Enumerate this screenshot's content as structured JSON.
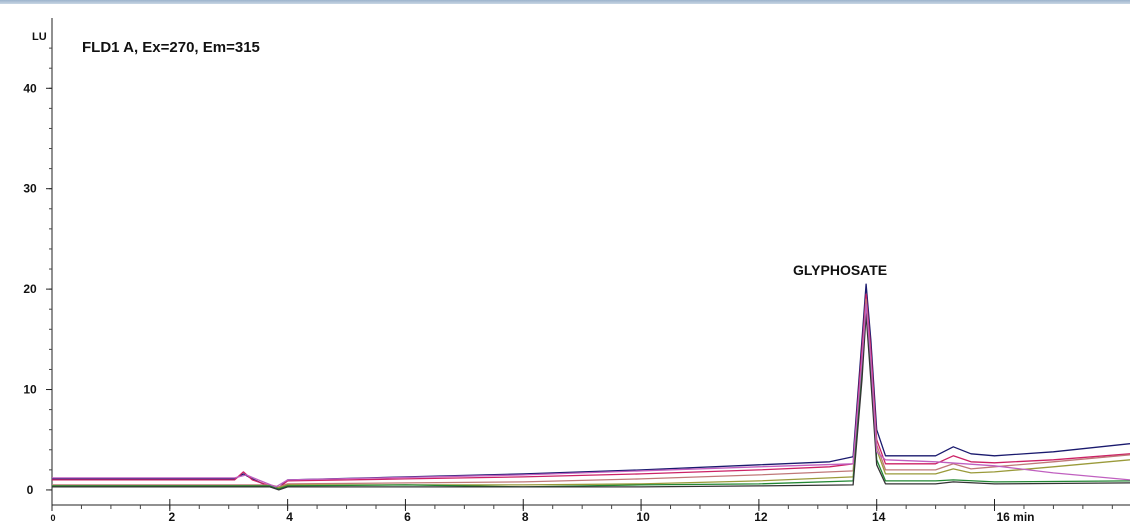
{
  "chart_data": {
    "type": "line",
    "title": "FLD1 A, Ex=270, Em=315",
    "ylabel": "LU",
    "xlabel": "min",
    "xlim": [
      0,
      18.3
    ],
    "ylim": [
      -1.5,
      47
    ],
    "x_ticks": [
      {
        "v": 0,
        "label": "0"
      },
      {
        "v": 2,
        "label": "2"
      },
      {
        "v": 4,
        "label": "4"
      },
      {
        "v": 6,
        "label": "6"
      },
      {
        "v": 8,
        "label": "8"
      },
      {
        "v": 10,
        "label": "10"
      },
      {
        "v": 12,
        "label": "12"
      },
      {
        "v": 14,
        "label": "14"
      },
      {
        "v": 16,
        "label": "16 min"
      }
    ],
    "y_ticks": [
      {
        "v": 0,
        "label": "0"
      },
      {
        "v": 10,
        "label": "10"
      },
      {
        "v": 20,
        "label": "20"
      },
      {
        "v": 30,
        "label": "30"
      },
      {
        "v": 40,
        "label": "40"
      }
    ],
    "annotations": [
      {
        "text": "GLYPHOSATE",
        "x": 14.1,
        "y": 22
      }
    ],
    "series": [
      {
        "color": "#1a1a6e",
        "points": [
          [
            0,
            1.1
          ],
          [
            3.1,
            1.1
          ],
          [
            3.25,
            1.6
          ],
          [
            3.4,
            1.1
          ],
          [
            3.7,
            0.3
          ],
          [
            3.85,
            0.2
          ],
          [
            4.0,
            1.0
          ],
          [
            6,
            1.3
          ],
          [
            8,
            1.6
          ],
          [
            10,
            2.0
          ],
          [
            12,
            2.5
          ],
          [
            13.2,
            2.8
          ],
          [
            13.6,
            3.3
          ],
          [
            13.75,
            15
          ],
          [
            13.82,
            20.5
          ],
          [
            13.9,
            15
          ],
          [
            14.0,
            6
          ],
          [
            14.15,
            3.4
          ],
          [
            15.0,
            3.4
          ],
          [
            15.3,
            4.3
          ],
          [
            15.6,
            3.6
          ],
          [
            16,
            3.4
          ],
          [
            17,
            3.8
          ],
          [
            18.3,
            4.6
          ]
        ]
      },
      {
        "color": "#cc2266",
        "points": [
          [
            0,
            1.0
          ],
          [
            3.1,
            1.0
          ],
          [
            3.25,
            1.8
          ],
          [
            3.4,
            1.0
          ],
          [
            3.7,
            0.4
          ],
          [
            3.85,
            0.2
          ],
          [
            4.0,
            0.9
          ],
          [
            6,
            1.1
          ],
          [
            8,
            1.3
          ],
          [
            10,
            1.6
          ],
          [
            12,
            2.0
          ],
          [
            13.2,
            2.3
          ],
          [
            13.6,
            2.6
          ],
          [
            13.75,
            14
          ],
          [
            13.82,
            19.5
          ],
          [
            13.9,
            14
          ],
          [
            14.0,
            5
          ],
          [
            14.15,
            2.6
          ],
          [
            15.0,
            2.6
          ],
          [
            15.3,
            3.4
          ],
          [
            15.6,
            2.8
          ],
          [
            16,
            2.7
          ],
          [
            17,
            3.0
          ],
          [
            18.3,
            3.6
          ]
        ]
      },
      {
        "color": "#c07878",
        "points": [
          [
            0,
            0.5
          ],
          [
            3.7,
            0.5
          ],
          [
            3.85,
            0.3
          ],
          [
            4.0,
            0.6
          ],
          [
            8,
            0.8
          ],
          [
            10,
            1.1
          ],
          [
            12,
            1.5
          ],
          [
            13.6,
            1.9
          ],
          [
            13.75,
            13
          ],
          [
            13.82,
            19
          ],
          [
            13.9,
            13
          ],
          [
            14.0,
            4.5
          ],
          [
            14.15,
            2.0
          ],
          [
            15.0,
            2.0
          ],
          [
            15.3,
            2.6
          ],
          [
            15.6,
            2.1
          ],
          [
            16,
            2.3
          ],
          [
            17,
            2.8
          ],
          [
            18.3,
            3.5
          ]
        ]
      },
      {
        "color": "#9a9a3a",
        "points": [
          [
            0,
            0.4
          ],
          [
            3.7,
            0.4
          ],
          [
            3.85,
            0.2
          ],
          [
            4.0,
            0.5
          ],
          [
            8,
            0.5
          ],
          [
            10,
            0.6
          ],
          [
            12,
            0.9
          ],
          [
            13.6,
            1.3
          ],
          [
            13.75,
            12
          ],
          [
            13.82,
            18.5
          ],
          [
            13.9,
            12
          ],
          [
            14.0,
            4
          ],
          [
            14.15,
            1.6
          ],
          [
            15.0,
            1.6
          ],
          [
            15.3,
            2.1
          ],
          [
            15.6,
            1.7
          ],
          [
            16,
            1.8
          ],
          [
            17,
            2.3
          ],
          [
            18.3,
            3.0
          ]
        ]
      },
      {
        "color": "#228833",
        "points": [
          [
            0,
            0.4
          ],
          [
            3.7,
            0.4
          ],
          [
            3.85,
            0.1
          ],
          [
            4.0,
            0.4
          ],
          [
            6,
            0.5
          ],
          [
            8,
            0.3
          ],
          [
            10,
            0.5
          ],
          [
            12,
            0.6
          ],
          [
            13.6,
            0.9
          ],
          [
            13.75,
            12
          ],
          [
            13.82,
            18
          ],
          [
            13.9,
            12
          ],
          [
            14.0,
            3
          ],
          [
            14.15,
            0.9
          ],
          [
            15.0,
            0.9
          ],
          [
            15.3,
            1.0
          ],
          [
            16,
            0.8
          ],
          [
            18.3,
            0.9
          ]
        ]
      },
      {
        "color": "#333333",
        "points": [
          [
            0,
            0.3
          ],
          [
            3.7,
            0.3
          ],
          [
            3.85,
            0.0
          ],
          [
            4.0,
            0.3
          ],
          [
            8,
            0.3
          ],
          [
            10,
            0.3
          ],
          [
            12,
            0.4
          ],
          [
            13.6,
            0.5
          ],
          [
            13.75,
            11
          ],
          [
            13.82,
            17.5
          ],
          [
            13.9,
            11
          ],
          [
            14.0,
            2.5
          ],
          [
            14.15,
            0.6
          ],
          [
            15.0,
            0.6
          ],
          [
            15.3,
            0.8
          ],
          [
            16,
            0.6
          ],
          [
            18.3,
            0.7
          ]
        ]
      },
      {
        "color": "#c060c0",
        "points": [
          [
            0,
            1.2
          ],
          [
            3.1,
            1.2
          ],
          [
            3.3,
            1.5
          ],
          [
            3.5,
            1.0
          ],
          [
            3.8,
            0.3
          ],
          [
            4.0,
            1.0
          ],
          [
            8,
            1.5
          ],
          [
            12,
            2.3
          ],
          [
            13.6,
            2.6
          ],
          [
            13.75,
            13
          ],
          [
            13.82,
            18.5
          ],
          [
            13.9,
            13
          ],
          [
            14.0,
            3.8
          ],
          [
            14.15,
            3.0
          ],
          [
            15.0,
            2.8
          ],
          [
            16,
            2.4
          ],
          [
            17,
            1.7
          ],
          [
            18.3,
            1.0
          ]
        ]
      }
    ]
  }
}
